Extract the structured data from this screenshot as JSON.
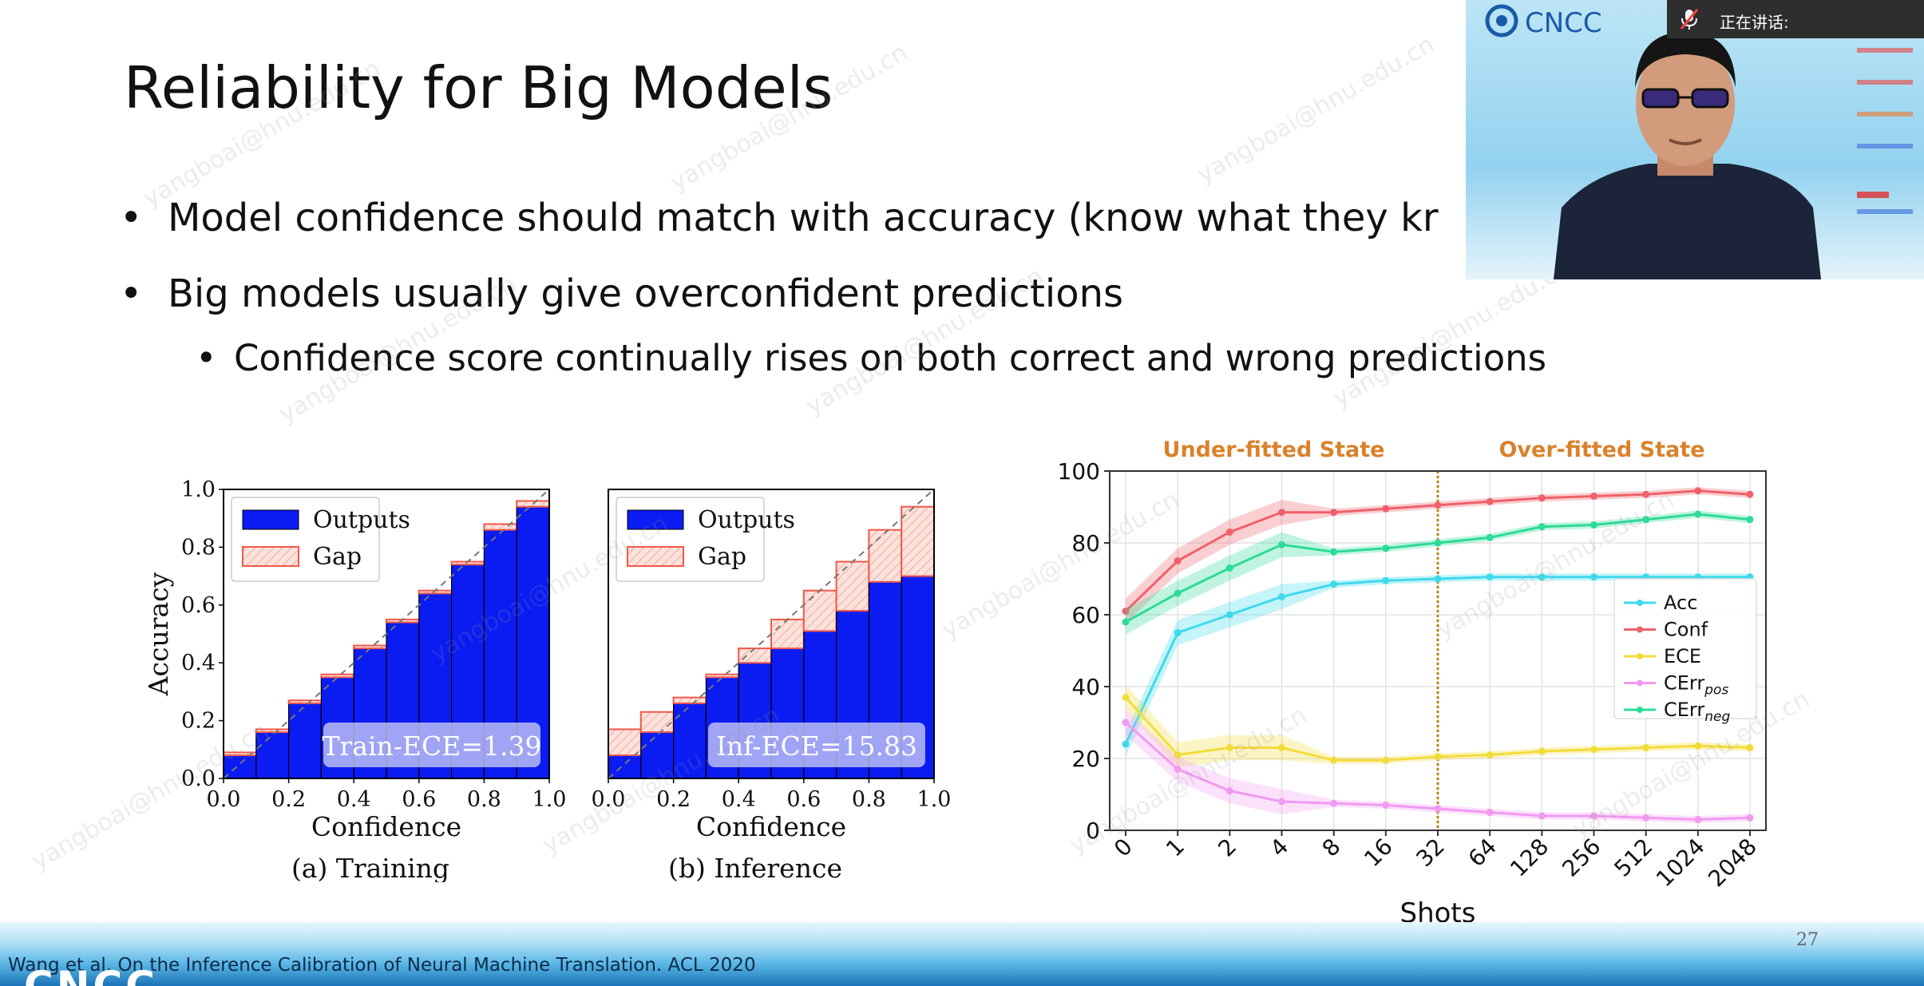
{
  "slide": {
    "title": "Reliability for Big Models",
    "bullets": [
      "Model confidence should match with accuracy (know what they kr",
      "Big models usually give overconfident predictions"
    ],
    "sub_bullets": [
      "Confidence score continually rises on both correct and wrong predictions"
    ],
    "citation": "Wang et al. On the Inference Calibration of Neural Machine Translation. ACL 2020",
    "page_number": "27",
    "footer_logo": "CNCC",
    "watermark": "yangboai@hnu.edu.cn"
  },
  "video": {
    "logo_text": "CNCC",
    "speaking_label": "正在讲话:",
    "icons": [
      "muted-mic-icon"
    ]
  },
  "chart_data": [
    {
      "type": "bar",
      "caption": "(a) Training",
      "xlabel": "Confidence",
      "ylabel": "Accuracy",
      "xlim": [
        0.0,
        1.0
      ],
      "ylim": [
        0.0,
        1.0
      ],
      "xticks": [
        "0.0",
        "0.2",
        "0.4",
        "0.6",
        "0.8",
        "1.0"
      ],
      "yticks": [
        "0.0",
        "0.2",
        "0.4",
        "0.6",
        "0.8",
        "1.0"
      ],
      "legend": [
        "Outputs",
        "Gap"
      ],
      "annotation": "Train-ECE=1.39",
      "bins": [
        0.05,
        0.15,
        0.25,
        0.35,
        0.45,
        0.55,
        0.65,
        0.75,
        0.85,
        0.95
      ],
      "series": [
        {
          "name": "Outputs",
          "values": [
            0.08,
            0.16,
            0.26,
            0.35,
            0.45,
            0.54,
            0.64,
            0.74,
            0.86,
            0.94
          ]
        },
        {
          "name": "Gap",
          "values": [
            0.09,
            0.17,
            0.27,
            0.36,
            0.46,
            0.55,
            0.65,
            0.75,
            0.88,
            0.96
          ]
        }
      ],
      "colors": {
        "Outputs": "#0a1cf2",
        "Gap": "#f0584a"
      }
    },
    {
      "type": "bar",
      "caption": "(b) Inference",
      "xlabel": "Confidence",
      "ylabel": "",
      "xlim": [
        0.0,
        1.0
      ],
      "ylim": [
        0.0,
        1.0
      ],
      "xticks": [
        "0.0",
        "0.2",
        "0.4",
        "0.6",
        "0.8",
        "1.0"
      ],
      "legend": [
        "Outputs",
        "Gap"
      ],
      "annotation": "Inf-ECE=15.83",
      "bins": [
        0.05,
        0.15,
        0.25,
        0.35,
        0.45,
        0.55,
        0.65,
        0.75,
        0.85,
        0.95
      ],
      "series": [
        {
          "name": "Outputs",
          "values": [
            0.08,
            0.16,
            0.26,
            0.35,
            0.4,
            0.45,
            0.51,
            0.58,
            0.68,
            0.7
          ]
        },
        {
          "name": "Gap",
          "values": [
            0.17,
            0.23,
            0.28,
            0.36,
            0.45,
            0.55,
            0.65,
            0.75,
            0.86,
            0.94
          ]
        }
      ],
      "colors": {
        "Outputs": "#0a1cf2",
        "Gap": "#f0584a"
      }
    },
    {
      "type": "line",
      "xlabel": "Shots",
      "ylabel": "",
      "x": [
        "0",
        "1",
        "2",
        "4",
        "8",
        "16",
        "32",
        "64",
        "128",
        "256",
        "512",
        "1024",
        "2048"
      ],
      "ylim": [
        0,
        100
      ],
      "yticks": [
        "0",
        "20",
        "40",
        "60",
        "80",
        "100"
      ],
      "region_labels": [
        "Under-fitted State",
        "Over-fitted State"
      ],
      "divider_at": "32",
      "grid": true,
      "legend_position": "right",
      "series": [
        {
          "name": "Acc",
          "color": "#3fd9ec",
          "values": [
            24,
            55,
            60,
            65,
            68.5,
            69.5,
            70,
            70.5,
            70.5,
            70.5,
            70.5,
            70.5,
            70.5
          ]
        },
        {
          "name": "Conf",
          "color": "#f0606a",
          "values": [
            61,
            75,
            83,
            88.5,
            88.5,
            89.5,
            90.5,
            91.5,
            92.5,
            93,
            93.5,
            94.5,
            93.5
          ]
        },
        {
          "name": "ECE",
          "color": "#f3dc3a",
          "values": [
            37,
            21,
            23,
            23,
            19.5,
            19.5,
            20.5,
            21,
            22,
            22.5,
            23,
            23.5,
            23
          ]
        },
        {
          "name": "CErr_pos",
          "label_main": "CErr",
          "label_sub": "pos",
          "color": "#f19af2",
          "values": [
            30,
            17,
            11,
            8,
            7.5,
            7,
            6,
            5,
            4,
            4,
            3.5,
            3,
            3.5
          ]
        },
        {
          "name": "CErr_neg",
          "label_main": "CErr",
          "label_sub": "neg",
          "color": "#2ddb98",
          "values": [
            58,
            66,
            73,
            79.5,
            77.5,
            78.5,
            80,
            81.5,
            84.5,
            85,
            86.5,
            88,
            86.5
          ]
        }
      ]
    }
  ]
}
